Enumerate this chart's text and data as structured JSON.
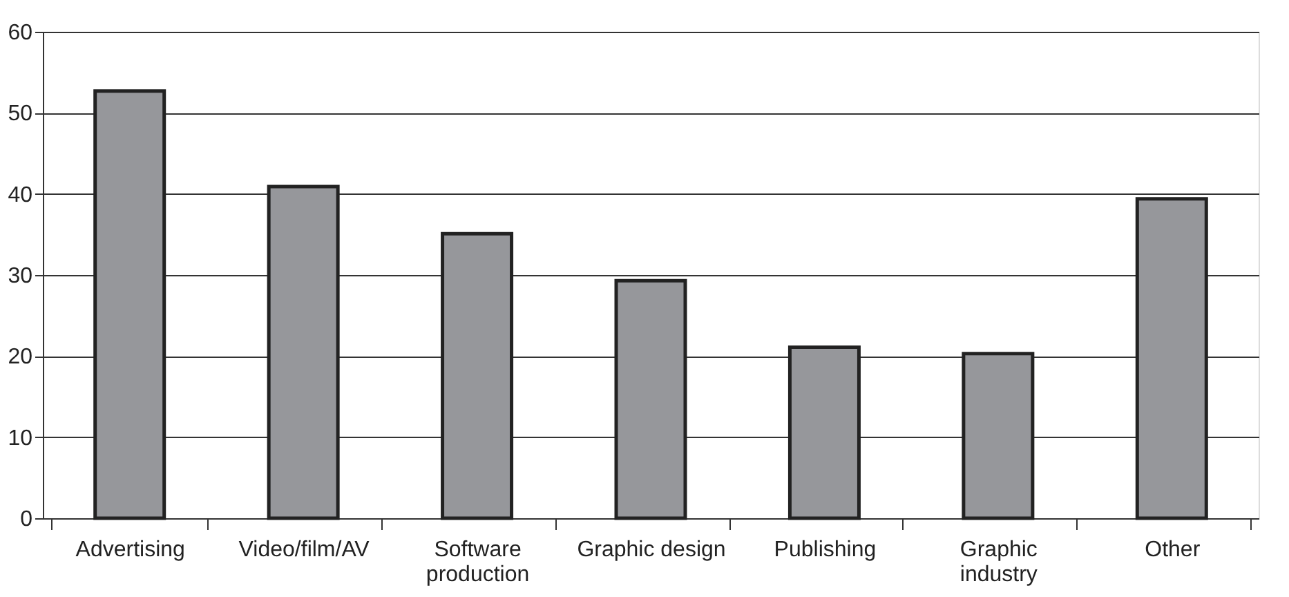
{
  "chart_data": {
    "type": "bar",
    "categories": [
      "Advertising",
      "Video/film/AV",
      "Software\nproduction",
      "Graphic design",
      "Publishing",
      "Graphic\nindustry",
      "Other"
    ],
    "values": [
      52.7,
      40.9,
      35.1,
      29.3,
      21.1,
      20.3,
      39.4
    ],
    "color": "#96979b",
    "ylim": [
      0,
      60
    ],
    "yticks": [
      0,
      10,
      20,
      30,
      40,
      50,
      60
    ],
    "grid": "y"
  }
}
